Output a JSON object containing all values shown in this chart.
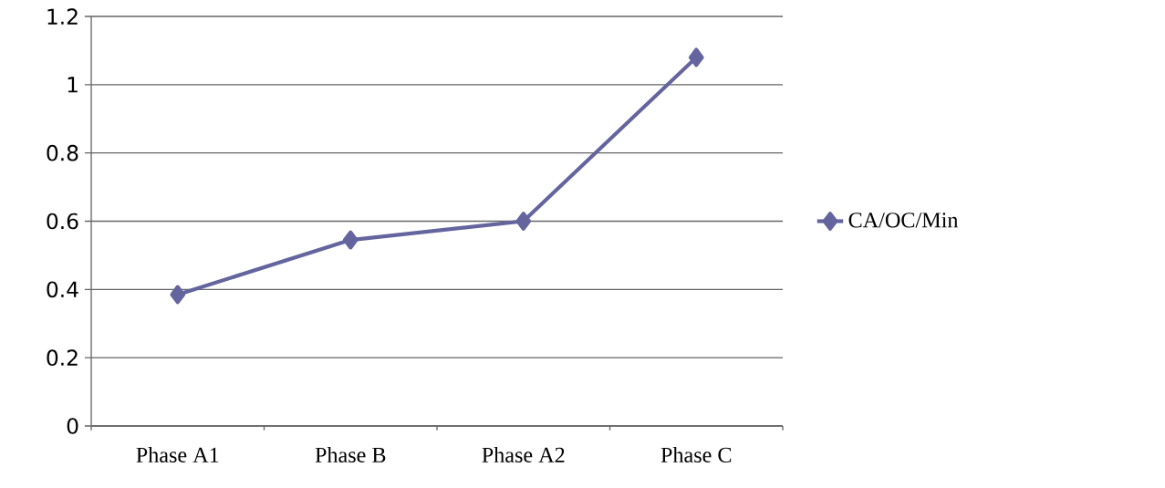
{
  "chart_data": {
    "type": "line",
    "categories": [
      "Phase A1",
      "Phase B",
      "Phase A2",
      "Phase C"
    ],
    "series": [
      {
        "name": "CA/OC/Min",
        "color": "#64649e",
        "values": [
          0.385,
          0.545,
          0.6,
          1.08
        ]
      }
    ],
    "ylim": [
      0,
      1.2
    ],
    "yticks": [
      0,
      0.2,
      0.4,
      0.6,
      0.8,
      1,
      1.2
    ],
    "grid": "y",
    "legend": "right",
    "marker": "diamond",
    "line_style": "solid"
  }
}
